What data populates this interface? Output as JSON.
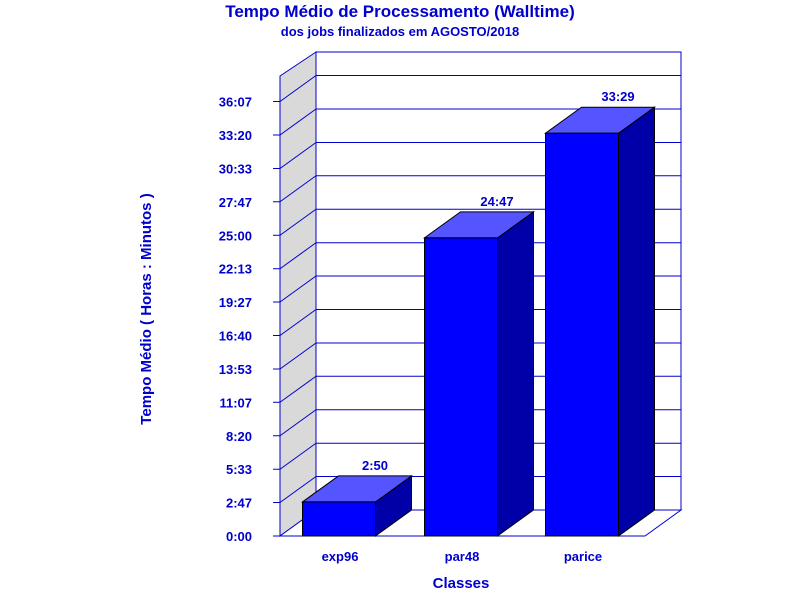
{
  "chart_data": {
    "type": "bar",
    "title": "Tempo Médio de Processamento (Walltime)",
    "subtitle": "dos jobs finalizados em AGOSTO/2018",
    "xlabel": "Classes",
    "ylabel": "Tempo Médio ( Horas : Minutos )",
    "categories": [
      "exp96",
      "par48",
      "parice"
    ],
    "values": [
      2.833,
      24.783,
      33.483
    ],
    "value_labels": [
      "2:50",
      "24:47",
      "33:29"
    ],
    "y_ticks": [
      0,
      2.783,
      5.55,
      8.333,
      11.117,
      13.883,
      16.667,
      19.45,
      22.217,
      25.0,
      27.783,
      30.55,
      33.333,
      36.117
    ],
    "y_tick_labels": [
      "0:00",
      "2:47",
      "5:33",
      "8:20",
      "11:07",
      "13:53",
      "16:40",
      "19:27",
      "22:13",
      "25:00",
      "27:47",
      "30:33",
      "33:20",
      "36:07"
    ],
    "ylim": [
      0,
      39.0
    ],
    "grid": true,
    "style": "3d",
    "bar_colors": {
      "front": "#0000ff",
      "top": "#5555ff",
      "side": "#0000a8"
    },
    "text_color": "#0000cc",
    "wall_color": "#d9d9d9",
    "axis_line_color": "#0000cc"
  }
}
